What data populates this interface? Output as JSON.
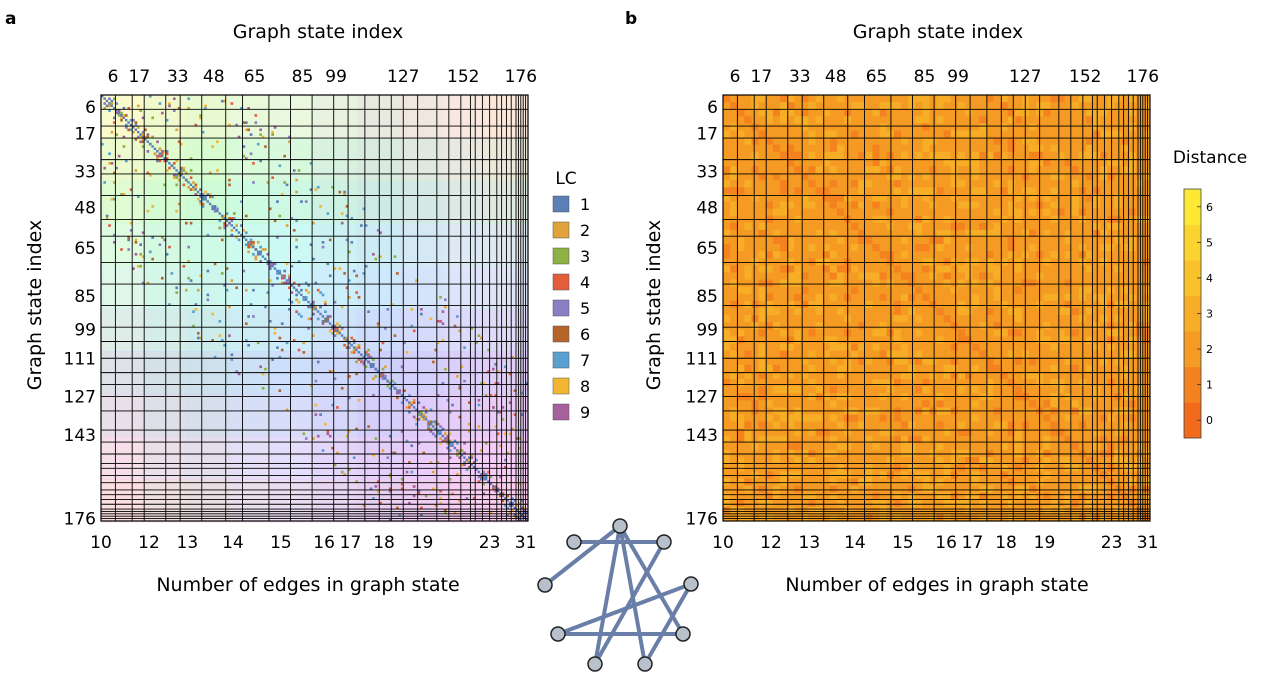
{
  "panel_labels": [
    "a",
    "b"
  ],
  "chart_data": [
    {
      "type": "heatmap",
      "panel": "a",
      "xlabel_top": "Graph state index",
      "ylabel": "Graph state index",
      "xlabel_bottom": "Number of edges in graph state",
      "index_ticks": [
        6,
        17,
        33,
        48,
        65,
        85,
        99,
        111,
        127,
        143,
        152,
        176
      ],
      "top_ticks_shown": [
        6,
        17,
        33,
        48,
        65,
        85,
        99,
        127,
        152,
        176
      ],
      "left_ticks_shown": [
        6,
        17,
        33,
        48,
        65,
        85,
        99,
        111,
        127,
        143,
        176
      ],
      "edge_ticks": [
        {
          "label": "10",
          "index": 1
        },
        {
          "label": "12",
          "index": 21
        },
        {
          "label": "13",
          "index": 37
        },
        {
          "label": "14",
          "index": 56
        },
        {
          "label": "15",
          "index": 76
        },
        {
          "label": "16",
          "index": 94
        },
        {
          "label": "17",
          "index": 105
        },
        {
          "label": "18",
          "index": 119
        },
        {
          "label": "19",
          "index": 135
        },
        {
          "label": "23",
          "index": 163
        },
        {
          "label": "31",
          "index": 178
        }
      ],
      "group_boundaries": [
        1,
        7,
        14,
        19,
        28,
        34,
        43,
        53,
        60,
        71,
        80,
        89,
        98,
        104,
        111,
        117,
        122,
        127,
        133,
        141,
        146,
        151,
        155,
        157,
        160,
        163,
        166,
        168,
        170,
        172,
        174,
        175,
        176,
        177,
        178
      ],
      "n_states": 178,
      "legend_title": "LC",
      "legend": [
        {
          "label": "1",
          "color": "#5b7fb6"
        },
        {
          "label": "2",
          "color": "#e0a33a"
        },
        {
          "label": "3",
          "color": "#8fb043"
        },
        {
          "label": "4",
          "color": "#e35d3c"
        },
        {
          "label": "5",
          "color": "#8a7fc2"
        },
        {
          "label": "6",
          "color": "#b5652a"
        },
        {
          "label": "7",
          "color": "#5b9fd0"
        },
        {
          "label": "8",
          "color": "#f2b632"
        },
        {
          "label": "9",
          "color": "#a6609c"
        }
      ]
    },
    {
      "type": "heatmap",
      "panel": "b",
      "xlabel_top": "Graph state index",
      "ylabel": "Graph state index",
      "xlabel_bottom": "Number of edges in graph state",
      "colorbar_title": "Distance",
      "colorbar_ticks": [
        "0",
        "1",
        "2",
        "3",
        "4",
        "5",
        "6"
      ],
      "colorbar_colors": [
        "#f26a1b",
        "#f4821f",
        "#f59a22",
        "#f7ae26",
        "#f9c22b",
        "#fbd42f",
        "#fde835"
      ],
      "edge_tick_labels_shown": [
        "10",
        "12",
        "13",
        "14",
        "15",
        "16",
        "17",
        "18",
        "19",
        "23",
        "31"
      ]
    }
  ]
}
